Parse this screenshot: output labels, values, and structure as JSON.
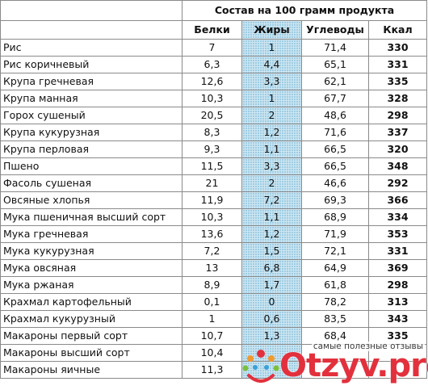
{
  "table": {
    "group_header": "Состав на 100 грамм продукта",
    "columns": [
      "Белки",
      "Жиры",
      "Углеводы",
      "Ккал"
    ],
    "rows": [
      {
        "name": "Рис",
        "protein": "7",
        "fat": "1",
        "carbs": "71,4",
        "kcal": "330"
      },
      {
        "name": "Рис коричневый",
        "protein": "6,3",
        "fat": "4,4",
        "carbs": "65,1",
        "kcal": "331"
      },
      {
        "name": "Крупа гречневая",
        "protein": "12,6",
        "fat": "3,3",
        "carbs": "62,1",
        "kcal": "335"
      },
      {
        "name": "Крупа манная",
        "protein": "10,3",
        "fat": "1",
        "carbs": "67,7",
        "kcal": "328"
      },
      {
        "name": "Горох сушеный",
        "protein": "20,5",
        "fat": "2",
        "carbs": "48,6",
        "kcal": "298"
      },
      {
        "name": "Крупа кукурузная",
        "protein": "8,3",
        "fat": "1,2",
        "carbs": "71,6",
        "kcal": "337"
      },
      {
        "name": "Крупа перловая",
        "protein": "9,3",
        "fat": "1,1",
        "carbs": "66,5",
        "kcal": "320"
      },
      {
        "name": "Пшено",
        "protein": "11,5",
        "fat": "3,3",
        "carbs": "66,5",
        "kcal": "348"
      },
      {
        "name": "Фасоль сушеная",
        "protein": "21",
        "fat": "2",
        "carbs": "46,6",
        "kcal": "292"
      },
      {
        "name": "Овсяные хлопья",
        "protein": "11,9",
        "fat": "7,2",
        "carbs": "69,3",
        "kcal": "366"
      },
      {
        "name": "Мука пшеничная высший сорт",
        "protein": "10,3",
        "fat": "1,1",
        "carbs": "68,9",
        "kcal": "334"
      },
      {
        "name": "Мука гречневая",
        "protein": "13,6",
        "fat": "1,2",
        "carbs": "71,9",
        "kcal": "353"
      },
      {
        "name": "Мука кукурузная",
        "protein": "7,2",
        "fat": "1,5",
        "carbs": "72,1",
        "kcal": "331"
      },
      {
        "name": "Мука овсяная",
        "protein": "13",
        "fat": "6,8",
        "carbs": "64,9",
        "kcal": "369"
      },
      {
        "name": "Мука ржаная",
        "protein": "8,9",
        "fat": "1,7",
        "carbs": "61,8",
        "kcal": "298"
      },
      {
        "name": "Крахмал картофельный",
        "protein": "0,1",
        "fat": "0",
        "carbs": "78,2",
        "kcal": "313"
      },
      {
        "name": "Крахмал кукурузный",
        "protein": "1",
        "fat": "0,6",
        "carbs": "83,5",
        "kcal": "343"
      },
      {
        "name": "Макароны первый сорт",
        "protein": "10,7",
        "fat": "1,3",
        "carbs": "68,4",
        "kcal": "335"
      },
      {
        "name": "Макароны высший сорт",
        "protein": "10,4",
        "fat": "",
        "carbs": "",
        "kcal": ""
      },
      {
        "name": "Макароны яичные",
        "protein": "11,3",
        "fat": "",
        "carbs": "",
        "kcal": ""
      }
    ]
  },
  "watermark": {
    "tagline": "самые полезные отзывы",
    "brand": "Otzyv.pro",
    "brand_color": "#e2313d"
  },
  "colors": {
    "fat_column": "#cde6f2",
    "grid": "#8a8a8a"
  }
}
